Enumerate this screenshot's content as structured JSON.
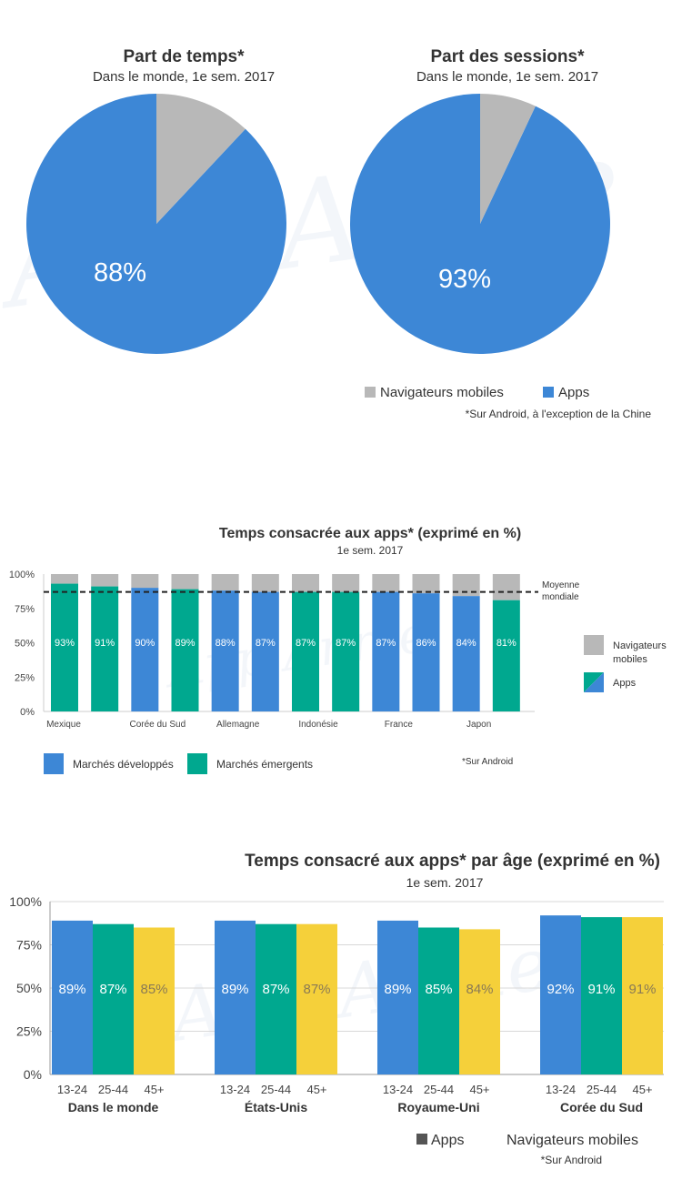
{
  "colors": {
    "apps": "#3d87d6",
    "browsers": "#b8b8b8",
    "emerging": "#00a88f",
    "age_13_24": "#3d87d6",
    "age_25_44": "#00a88f",
    "age_45_plus": "#f5d03a",
    "legend_square": "#555555"
  },
  "watermark": "App Annie",
  "chart_data": [
    {
      "type": "pie",
      "title": "Part de temps*",
      "subtitle": "Dans le monde,  1e sem. 2017",
      "slices": [
        {
          "name": "Apps",
          "value": 88
        },
        {
          "name": "Navigateurs mobiles",
          "value": 12
        }
      ],
      "label": "88%"
    },
    {
      "type": "pie",
      "title": "Part des sessions*",
      "subtitle": "Dans le monde,  1e sem. 2017",
      "slices": [
        {
          "name": "Apps",
          "value": 93
        },
        {
          "name": "Navigateurs mobiles",
          "value": 7
        }
      ],
      "label": "93%"
    },
    {
      "type": "bar",
      "title": "Temps consacrée aux apps* (exprimé en %)",
      "subtitle": "1e sem. 2017",
      "categories": [
        "Mexique",
        "",
        "Corée du Sud",
        "",
        "Allemagne",
        "",
        "Indonésie",
        "",
        "France",
        "",
        "Japon",
        ""
      ],
      "values": [
        93,
        91,
        90,
        89,
        88,
        87,
        87,
        87,
        87,
        86,
        84,
        81
      ],
      "labels": [
        "93%",
        "91%",
        "90%",
        "89%",
        "88%",
        "87%",
        "87%",
        "87%",
        "87%",
        "86%",
        "84%",
        "81%"
      ],
      "market": [
        "emerging",
        "emerging",
        "developed",
        "emerging",
        "developed",
        "developed",
        "emerging",
        "emerging",
        "developed",
        "developed",
        "developed",
        "emerging"
      ],
      "yticks": [
        "0%",
        "25%",
        "50%",
        "75%",
        "100%"
      ],
      "ylim": [
        0,
        100
      ],
      "average": 87,
      "average_label": [
        "Moyenne",
        "mondiale"
      ],
      "legend_right": [
        "Navigateurs mobiles",
        "Apps"
      ],
      "legend_bottom": [
        "Marchés développés",
        "Marchés émergents"
      ],
      "footnote": "*Sur Android"
    },
    {
      "type": "bar",
      "title": "Temps consacré aux apps* par âge (exprimé en %)",
      "subtitle": "1e sem. 2017",
      "groups": [
        "Dans le monde",
        "États-Unis",
        "Royaume-Uni",
        "Corée du Sud"
      ],
      "age_labels": [
        "13-24",
        "25-44",
        "45+"
      ],
      "values": [
        [
          89,
          87,
          85
        ],
        [
          89,
          87,
          87
        ],
        [
          89,
          85,
          84
        ],
        [
          92,
          91,
          91
        ]
      ],
      "labels": [
        [
          "89%",
          "87%",
          "85%"
        ],
        [
          "89%",
          "87%",
          "87%"
        ],
        [
          "89%",
          "85%",
          "84%"
        ],
        [
          "92%",
          "91%",
          "91%"
        ]
      ],
      "yticks": [
        "0%",
        "25%",
        "50%",
        "75%",
        "100%"
      ],
      "ylim": [
        0,
        100
      ],
      "legend": [
        "Apps",
        "Navigateurs mobiles"
      ],
      "footnote": "*Sur Android"
    }
  ],
  "pie_legend": {
    "browsers": "Navigateurs mobiles",
    "apps": "Apps",
    "footnote": "*Sur Android, à l'exception de la Chine"
  }
}
